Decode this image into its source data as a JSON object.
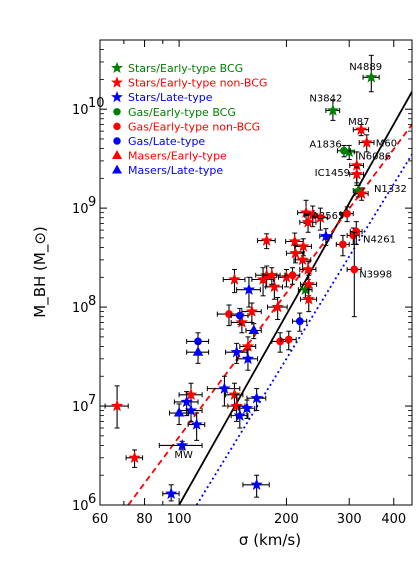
{
  "chart_data": {
    "type": "scatter",
    "xlabel": "σ (km/s)",
    "ylabel": "M_BH (M_⊙)",
    "x_log": true,
    "y_log": true,
    "xlim": [
      60,
      450
    ],
    "ylim": [
      1000000,
      50000000000
    ],
    "x_tick_labels": [
      "60",
      "80",
      "100",
      "200",
      "300",
      "400"
    ],
    "y_tick_labels": [
      "10",
      "10",
      "10",
      "10",
      "10"
    ],
    "y_tick_exponents": [
      "6",
      "7",
      "8",
      "9",
      "10"
    ],
    "legend_position": "top-left",
    "legend": [
      {
        "label": "Stars/Early-type BCG",
        "marker": "star",
        "color": "#008000"
      },
      {
        "label": "Stars/Early-type non-BCG",
        "marker": "star",
        "color": "#ff0000"
      },
      {
        "label": "Stars/Late-type",
        "marker": "star",
        "color": "#0000ff"
      },
      {
        "label": "Gas/Early-type BCG",
        "marker": "circle",
        "color": "#008000"
      },
      {
        "label": "Gas/Early-type non-BCG",
        "marker": "circle",
        "color": "#ff0000"
      },
      {
        "label": "Gas/Late-type",
        "marker": "circle",
        "color": "#0000ff"
      },
      {
        "label": "Masers/Early-type",
        "marker": "triangle",
        "color": "#ff0000"
      },
      {
        "label": "Masers/Late-type",
        "marker": "triangle",
        "color": "#0000ff"
      }
    ],
    "fit_lines": [
      {
        "style": "solid",
        "color": "#000000",
        "points": [
          [
            100,
            1000000
          ],
          [
            450,
            15000000000
          ]
        ]
      },
      {
        "style": "dashed",
        "color": "#ff0000",
        "points": [
          [
            72,
            1000000
          ],
          [
            450,
            7000000000
          ]
        ]
      },
      {
        "style": "dotted",
        "color": "#0000ff",
        "points": [
          [
            112,
            1000000
          ],
          [
            450,
            3500000000
          ]
        ]
      }
    ],
    "annotations": [
      {
        "text": "N4889",
        "x": 300,
        "y": 25000000000
      },
      {
        "text": "N3842",
        "x": 232,
        "y": 12000000000
      },
      {
        "text": "M87",
        "x": 298,
        "y": 6900000000
      },
      {
        "text": "M60",
        "x": 356,
        "y": 4200000000
      },
      {
        "text": "A1836",
        "x": 232,
        "y": 4100000000
      },
      {
        "text": "N6086",
        "x": 318,
        "y": 3100000000
      },
      {
        "text": "IC1459",
        "x": 240,
        "y": 2100000000
      },
      {
        "text": "N1332",
        "x": 352,
        "y": 1450000000
      },
      {
        "text": "A3565",
        "x": 236,
        "y": 780000000
      },
      {
        "text": "N4261",
        "x": 328,
        "y": 450000000
      },
      {
        "text": "N3998",
        "x": 320,
        "y": 200000000
      },
      {
        "text": "MW",
        "x": 97,
        "y": 3000000
      }
    ],
    "points": [
      {
        "x": 346,
        "y": 21000000000,
        "marker": "star",
        "color": "#008000",
        "xerr": 18,
        "yerr_lo": 6000000000,
        "yerr_hi": 14000000000
      },
      {
        "x": 270,
        "y": 9700000000,
        "marker": "star",
        "color": "#008000",
        "xerr": 12,
        "yerr_lo": 2000000000,
        "yerr_hi": 2500000000
      },
      {
        "x": 300,
        "y": 3700000000,
        "marker": "star",
        "color": "#008000",
        "xerr": 10,
        "yerr_lo": 600000000,
        "yerr_hi": 600000000
      },
      {
        "x": 318,
        "y": 1500000000,
        "marker": "star",
        "color": "#008000",
        "xerr": 10,
        "yerr_lo": 200000000,
        "yerr_hi": 200000000
      },
      {
        "x": 226,
        "y": 150000000,
        "marker": "star",
        "color": "#008000",
        "xerr": 10,
        "yerr_lo": 25000000,
        "yerr_hi": 25000000
      },
      {
        "x": 324,
        "y": 6200000000,
        "marker": "star",
        "color": "#ff0000",
        "xerr": 16,
        "yerr_lo": 800000000,
        "yerr_hi": 800000000
      },
      {
        "x": 336,
        "y": 4600000000,
        "marker": "star",
        "color": "#ff0000",
        "xerr": 16,
        "yerr_lo": 900000000,
        "yerr_hi": 900000000
      },
      {
        "x": 315,
        "y": 2700000000,
        "marker": "star",
        "color": "#ff0000",
        "xerr": 14,
        "yerr_lo": 1000000000,
        "yerr_hi": 1000000000
      },
      {
        "x": 315,
        "y": 2200000000,
        "marker": "star",
        "color": "#ff0000",
        "xerr": 14,
        "yerr_lo": 400000000,
        "yerr_hi": 400000000
      },
      {
        "x": 325,
        "y": 1400000000,
        "marker": "star",
        "color": "#ff0000",
        "xerr": 14,
        "yerr_lo": 200000000,
        "yerr_hi": 200000000
      },
      {
        "x": 227,
        "y": 900000000,
        "marker": "star",
        "color": "#ff0000",
        "xerr": 12,
        "yerr_lo": 200000000,
        "yerr_hi": 300000000
      },
      {
        "x": 237,
        "y": 850000000,
        "marker": "star",
        "color": "#ff0000",
        "xerr": 12,
        "yerr_lo": 200000000,
        "yerr_hi": 200000000
      },
      {
        "x": 249,
        "y": 800000000,
        "marker": "star",
        "color": "#ff0000",
        "xerr": 12,
        "yerr_lo": 200000000,
        "yerr_hi": 200000000
      },
      {
        "x": 230,
        "y": 720000000,
        "marker": "star",
        "color": "#ff0000",
        "xerr": 12,
        "yerr_lo": 150000000,
        "yerr_hi": 150000000
      },
      {
        "x": 211,
        "y": 460000000,
        "marker": "star",
        "color": "#ff0000",
        "xerr": 12,
        "yerr_lo": 100000000,
        "yerr_hi": 100000000
      },
      {
        "x": 176,
        "y": 470000000,
        "marker": "star",
        "color": "#ff0000",
        "xerr": 10,
        "yerr_lo": 80000000,
        "yerr_hi": 80000000
      },
      {
        "x": 223,
        "y": 410000000,
        "marker": "star",
        "color": "#ff0000",
        "xerr": 12,
        "yerr_lo": 80000000,
        "yerr_hi": 80000000
      },
      {
        "x": 212,
        "y": 350000000,
        "marker": "star",
        "color": "#ff0000",
        "xerr": 12,
        "yerr_lo": 70000000,
        "yerr_hi": 70000000
      },
      {
        "x": 222,
        "y": 300000000,
        "marker": "star",
        "color": "#ff0000",
        "xerr": 12,
        "yerr_lo": 60000000,
        "yerr_hi": 60000000
      },
      {
        "x": 230,
        "y": 240000000,
        "marker": "star",
        "color": "#ff0000",
        "xerr": 12,
        "yerr_lo": 50000000,
        "yerr_hi": 50000000
      },
      {
        "x": 231,
        "y": 170000000,
        "marker": "star",
        "color": "#ff0000",
        "xerr": 12,
        "yerr_lo": 40000000,
        "yerr_hi": 40000000
      },
      {
        "x": 231,
        "y": 120000000,
        "marker": "star",
        "color": "#ff0000",
        "xerr": 12,
        "yerr_lo": 30000000,
        "yerr_hi": 30000000
      },
      {
        "x": 176,
        "y": 210000000,
        "marker": "star",
        "color": "#ff0000",
        "xerr": 12,
        "yerr_lo": 50000000,
        "yerr_hi": 50000000
      },
      {
        "x": 172,
        "y": 190000000,
        "marker": "star",
        "color": "#ff0000",
        "xerr": 12,
        "yerr_lo": 60000000,
        "yerr_hi": 60000000
      },
      {
        "x": 185,
        "y": 160000000,
        "marker": "star",
        "color": "#ff0000",
        "xerr": 10,
        "yerr_lo": 40000000,
        "yerr_hi": 40000000
      },
      {
        "x": 182,
        "y": 210000000,
        "marker": "star",
        "color": "#ff0000",
        "xerr": 10,
        "yerr_lo": 40000000,
        "yerr_hi": 40000000
      },
      {
        "x": 200,
        "y": 200000000,
        "marker": "star",
        "color": "#ff0000",
        "xerr": 10,
        "yerr_lo": 40000000,
        "yerr_hi": 40000000
      },
      {
        "x": 189,
        "y": 100000000,
        "marker": "star",
        "color": "#ff0000",
        "xerr": 12,
        "yerr_lo": 25000000,
        "yerr_hi": 25000000
      },
      {
        "x": 160,
        "y": 90000000,
        "marker": "star",
        "color": "#ff0000",
        "xerr": 10,
        "yerr_lo": 20000000,
        "yerr_hi": 20000000
      },
      {
        "x": 150,
        "y": 70000000,
        "marker": "star",
        "color": "#ff0000",
        "xerr": 10,
        "yerr_lo": 15000000,
        "yerr_hi": 15000000
      },
      {
        "x": 143,
        "y": 190000000,
        "marker": "star",
        "color": "#ff0000",
        "xerr": 10,
        "yerr_lo": 50000000,
        "yerr_hi": 50000000
      },
      {
        "x": 156,
        "y": 40000000,
        "marker": "star",
        "color": "#ff0000",
        "xerr": 8,
        "yerr_lo": 10000000,
        "yerr_hi": 10000000
      },
      {
        "x": 108,
        "y": 13000000,
        "marker": "star",
        "color": "#ff0000",
        "xerr": 8,
        "yerr_lo": 4000000,
        "yerr_hi": 4000000
      },
      {
        "x": 143,
        "y": 13000000,
        "marker": "star",
        "color": "#ff0000",
        "xerr": 8,
        "yerr_lo": 4000000,
        "yerr_hi": 4000000
      },
      {
        "x": 145,
        "y": 10000000,
        "marker": "star",
        "color": "#ff0000",
        "xerr": 8,
        "yerr_lo": 3000000,
        "yerr_hi": 3000000
      },
      {
        "x": 75,
        "y": 3000000,
        "marker": "star",
        "color": "#ff0000",
        "xerr": 4,
        "yerr_lo": 600000,
        "yerr_hi": 600000
      },
      {
        "x": 67,
        "y": 10000000,
        "marker": "star",
        "color": "#ff0000",
        "xerr": 5,
        "yerr_lo": 4000000,
        "yerr_hi": 6000000
      },
      {
        "x": 258,
        "y": 520000000,
        "marker": "star",
        "color": "#0000ff",
        "xerr": 10,
        "yerr_lo": 100000000,
        "yerr_hi": 100000000
      },
      {
        "x": 157,
        "y": 150000000,
        "marker": "star",
        "color": "#0000ff",
        "xerr": 12,
        "yerr_lo": 50000000,
        "yerr_hi": 50000000
      },
      {
        "x": 145,
        "y": 35000000,
        "marker": "star",
        "color": "#0000ff",
        "xerr": 10,
        "yerr_lo": 8000000,
        "yerr_hi": 8000000
      },
      {
        "x": 156,
        "y": 30000000,
        "marker": "star",
        "color": "#0000ff",
        "xerr": 10,
        "yerr_lo": 7000000,
        "yerr_hi": 7000000
      },
      {
        "x": 134,
        "y": 15000000,
        "marker": "star",
        "color": "#0000ff",
        "xerr": 14,
        "yerr_lo": 5000000,
        "yerr_hi": 5000000
      },
      {
        "x": 165,
        "y": 12000000,
        "marker": "star",
        "color": "#0000ff",
        "xerr": 10,
        "yerr_lo": 3000000,
        "yerr_hi": 3000000
      },
      {
        "x": 148,
        "y": 8000000,
        "marker": "star",
        "color": "#0000ff",
        "xerr": 8,
        "yerr_lo": 2000000,
        "yerr_hi": 2000000
      },
      {
        "x": 155,
        "y": 9500000,
        "marker": "star",
        "color": "#0000ff",
        "xerr": 8,
        "yerr_lo": 2000000,
        "yerr_hi": 2000000
      },
      {
        "x": 108,
        "y": 9000000,
        "marker": "star",
        "color": "#0000ff",
        "xerr": 8,
        "yerr_lo": 2000000,
        "yerr_hi": 2000000
      },
      {
        "x": 112,
        "y": 6500000,
        "marker": "star",
        "color": "#0000ff",
        "xerr": 6,
        "yerr_lo": 2000000,
        "yerr_hi": 2000000
      },
      {
        "x": 105,
        "y": 11000000,
        "marker": "star",
        "color": "#0000ff",
        "xerr": 8,
        "yerr_lo": 3000000,
        "yerr_hi": 3000000
      },
      {
        "x": 102,
        "y": 4000000,
        "marker": "star",
        "color": "#0000ff",
        "xerr": 14,
        "yerr_lo": 400000,
        "yerr_hi": 400000
      },
      {
        "x": 95,
        "y": 1300000,
        "marker": "star",
        "color": "#0000ff",
        "xerr": 5,
        "yerr_lo": 200000,
        "yerr_hi": 300000
      },
      {
        "x": 165,
        "y": 1600000,
        "marker": "star",
        "color": "#0000ff",
        "xerr": 14,
        "yerr_lo": 400000,
        "yerr_hi": 400000
      },
      {
        "x": 290,
        "y": 3800000000,
        "marker": "circle",
        "color": "#008000",
        "xerr": 12,
        "yerr_lo": 500000000,
        "yerr_hi": 500000000
      },
      {
        "x": 296,
        "y": 880000000,
        "marker": "circle",
        "color": "#ff0000",
        "xerr": 12,
        "yerr_lo": 150000000,
        "yerr_hi": 150000000
      },
      {
        "x": 308,
        "y": 530000000,
        "marker": "circle",
        "color": "#ff0000",
        "xerr": 12,
        "yerr_lo": 100000000,
        "yerr_hi": 100000000
      },
      {
        "x": 314,
        "y": 580000000,
        "marker": "circle",
        "color": "#ff0000",
        "xerr": 12,
        "yerr_lo": 150000000,
        "yerr_hi": 150000000
      },
      {
        "x": 288,
        "y": 430000000,
        "marker": "circle",
        "color": "#ff0000",
        "xerr": 12,
        "yerr_lo": 100000000,
        "yerr_hi": 100000000
      },
      {
        "x": 310,
        "y": 240000000,
        "marker": "circle",
        "color": "#ff0000",
        "xerr": 14,
        "yerr_lo": 160000000,
        "yerr_hi": 330000000
      },
      {
        "x": 192,
        "y": 45000000,
        "marker": "circle",
        "color": "#ff0000",
        "xerr": 10,
        "yerr_lo": 10000000,
        "yerr_hi": 10000000
      },
      {
        "x": 203,
        "y": 47000000,
        "marker": "circle",
        "color": "#ff0000",
        "xerr": 10,
        "yerr_lo": 10000000,
        "yerr_hi": 10000000
      },
      {
        "x": 138,
        "y": 85000000,
        "marker": "circle",
        "color": "#ff0000",
        "xerr": 10,
        "yerr_lo": 20000000,
        "yerr_hi": 20000000
      },
      {
        "x": 208,
        "y": 210000000,
        "marker": "circle",
        "color": "#ff0000",
        "xerr": 10,
        "yerr_lo": 40000000,
        "yerr_hi": 40000000
      },
      {
        "x": 218,
        "y": 72000000,
        "marker": "circle",
        "color": "#0000ff",
        "xerr": 10,
        "yerr_lo": 15000000,
        "yerr_hi": 15000000
      },
      {
        "x": 113,
        "y": 45000000,
        "marker": "circle",
        "color": "#0000ff",
        "xerr": 8,
        "yerr_lo": 10000000,
        "yerr_hi": 10000000
      },
      {
        "x": 148,
        "y": 82000000,
        "marker": "circle",
        "color": "#0000ff",
        "xerr": 8,
        "yerr_lo": 15000000,
        "yerr_hi": 15000000
      },
      {
        "x": 162,
        "y": 58000000,
        "marker": "triangle",
        "color": "#0000ff",
        "xerr": 8,
        "yerr_lo": 10000000,
        "yerr_hi": 10000000
      },
      {
        "x": 113,
        "y": 35000000,
        "marker": "triangle",
        "color": "#0000ff",
        "xerr": 8,
        "yerr_lo": 8000000,
        "yerr_hi": 8000000
      },
      {
        "x": 100,
        "y": 8500000,
        "marker": "triangle",
        "color": "#0000ff",
        "xerr": 6,
        "yerr_lo": 2000000,
        "yerr_hi": 2000000
      }
    ]
  }
}
